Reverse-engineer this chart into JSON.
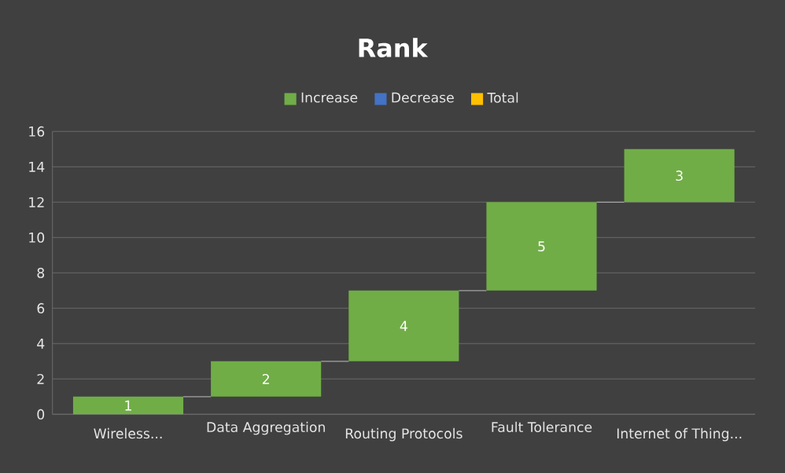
{
  "chart_data": {
    "type": "bar",
    "title": "Rank",
    "categories": [
      "Wireless...",
      "Data Aggregation",
      "Routing Protocols",
      "Fault Tolerance",
      "Internet of Thing..."
    ],
    "series": [
      {
        "name": "Increase",
        "color": "#70ad47",
        "values": [
          1,
          2,
          4,
          5,
          3
        ],
        "base": [
          0,
          1,
          3,
          7,
          12
        ]
      },
      {
        "name": "Decrease",
        "color": "#4472c4",
        "values": [
          null,
          null,
          null,
          null,
          null
        ]
      },
      {
        "name": "Total",
        "color": "#ffc000",
        "values": [
          null,
          null,
          null,
          null,
          null
        ]
      }
    ],
    "data_labels": true,
    "ylim": [
      0,
      16
    ],
    "yticks": [
      0,
      2,
      4,
      6,
      8,
      10,
      12,
      14,
      16
    ],
    "grid": "y",
    "legend": "top"
  }
}
